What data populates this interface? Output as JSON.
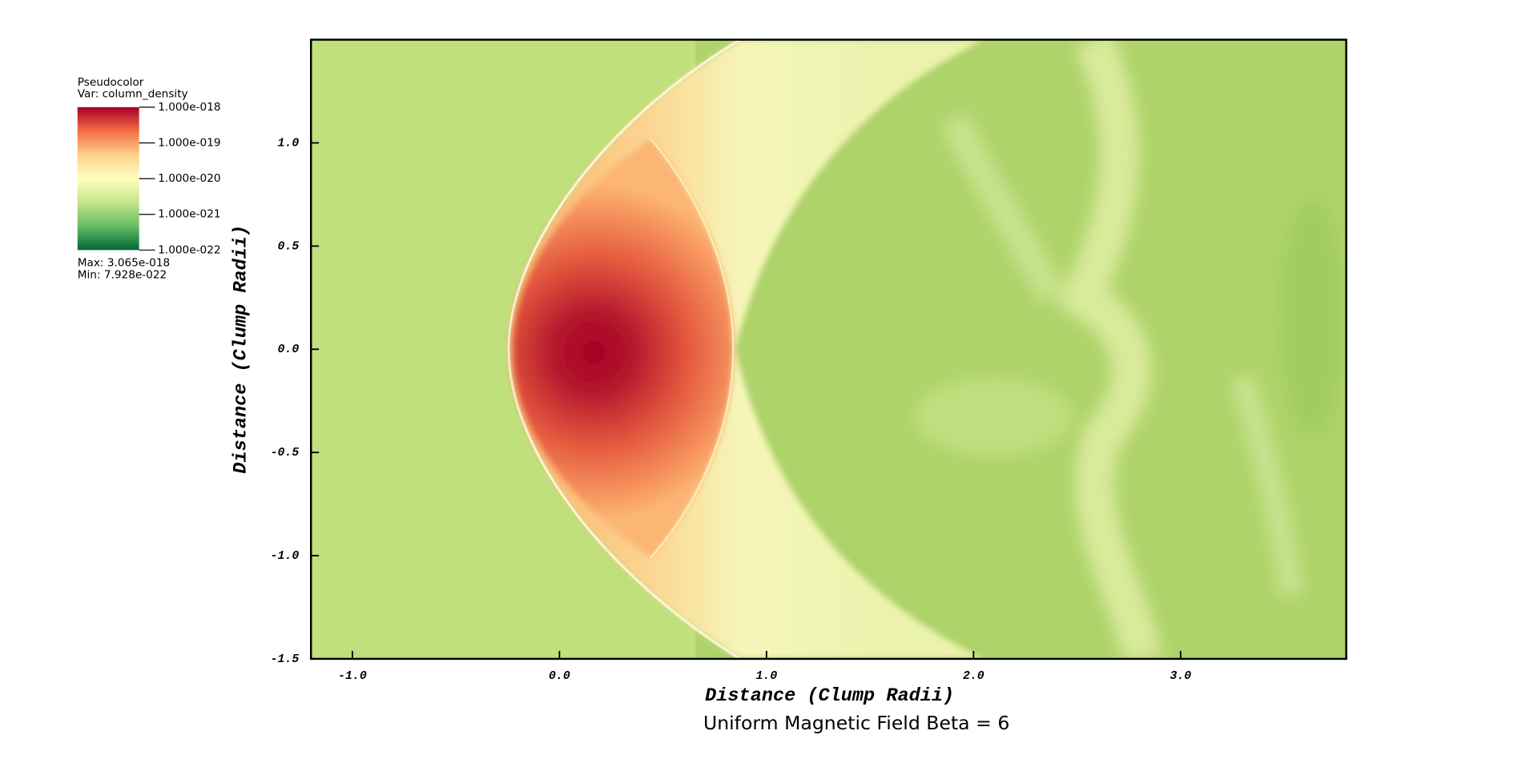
{
  "chart_data": {
    "type": "pseudocolor",
    "title": "Uniform Magnetic Field Beta = 6",
    "xlabel": "Distance (Clump Radii)",
    "ylabel": "Distance (Clump Radii)",
    "xlim": [
      -1.2,
      3.8
    ],
    "ylim": [
      -1.5,
      1.5
    ],
    "xticks": [
      {
        "value": -1,
        "label": "-1.0"
      },
      {
        "value": 0,
        "label": "0.0"
      },
      {
        "value": 1,
        "label": "1.0"
      },
      {
        "value": 2,
        "label": "2.0"
      },
      {
        "value": 3,
        "label": "3.0"
      }
    ],
    "yticks": [
      -1.5,
      {
        "value": -1,
        "label": "-1.0"
      },
      -0.5,
      {
        "value": 0,
        "label": "0.0"
      },
      0.5,
      {
        "value": 1,
        "label": "1.0"
      }
    ],
    "colorbar": {
      "title": "Pseudocolor",
      "var": "Var: column_density",
      "log": true,
      "lim": [
        1e-22,
        1e-18
      ],
      "ticks": [
        {
          "value": 1e-18,
          "label": "1.000e-018"
        },
        {
          "value": 1e-19,
          "label": "1.000e-019"
        },
        {
          "value": 1e-20,
          "label": "1.000e-020"
        },
        {
          "value": 1e-21,
          "label": "1.000e-021"
        },
        {
          "value": 1e-22,
          "label": "1.000e-022"
        }
      ],
      "colors": [
        "#a50026",
        "#f46d43",
        "#fdd08a",
        "#ffffbf",
        "#c5e589",
        "#66bd63",
        "#006837"
      ],
      "max_text": "Max:  3.065e-018",
      "min_text": "Min:  7.928e-022"
    }
  }
}
